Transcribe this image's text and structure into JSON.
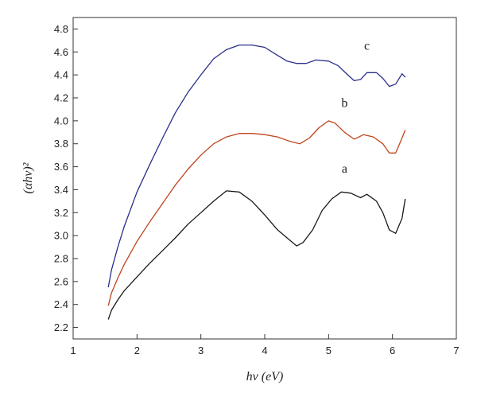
{
  "chart_data": {
    "type": "line",
    "xlabel": "hν (eV)",
    "ylabel": "(αhν)²",
    "xlim": [
      1,
      7
    ],
    "ylim": [
      2.1,
      4.9
    ],
    "x_ticks": [
      "1",
      "2",
      "3",
      "4",
      "5",
      "6",
      "7"
    ],
    "y_ticks": [
      "2.2",
      "2.4",
      "2.6",
      "2.8",
      "3.0",
      "3.2",
      "3.4",
      "3.6",
      "3.8",
      "4.0",
      "4.2",
      "4.4",
      "4.6",
      "4.8"
    ],
    "grid": false,
    "series": [
      {
        "name": "a",
        "color": "#1a1a1a",
        "label_pos": [
          5.25,
          3.55
        ],
        "points": [
          [
            1.55,
            2.27
          ],
          [
            1.6,
            2.35
          ],
          [
            1.7,
            2.44
          ],
          [
            1.8,
            2.52
          ],
          [
            2.0,
            2.64
          ],
          [
            2.2,
            2.76
          ],
          [
            2.4,
            2.87
          ],
          [
            2.6,
            2.98
          ],
          [
            2.8,
            3.1
          ],
          [
            3.0,
            3.2
          ],
          [
            3.2,
            3.3
          ],
          [
            3.4,
            3.39
          ],
          [
            3.6,
            3.38
          ],
          [
            3.8,
            3.3
          ],
          [
            4.0,
            3.18
          ],
          [
            4.2,
            3.05
          ],
          [
            4.35,
            2.98
          ],
          [
            4.5,
            2.91
          ],
          [
            4.6,
            2.94
          ],
          [
            4.75,
            3.05
          ],
          [
            4.9,
            3.22
          ],
          [
            5.05,
            3.32
          ],
          [
            5.2,
            3.38
          ],
          [
            5.35,
            3.37
          ],
          [
            5.5,
            3.33
          ],
          [
            5.6,
            3.36
          ],
          [
            5.75,
            3.3
          ],
          [
            5.85,
            3.2
          ],
          [
            5.95,
            3.05
          ],
          [
            6.05,
            3.02
          ],
          [
            6.15,
            3.15
          ],
          [
            6.2,
            3.32
          ]
        ]
      },
      {
        "name": "b",
        "color": "#c0441c",
        "label_pos": [
          5.25,
          4.12
        ],
        "points": [
          [
            1.55,
            2.39
          ],
          [
            1.6,
            2.5
          ],
          [
            1.7,
            2.63
          ],
          [
            1.8,
            2.75
          ],
          [
            2.0,
            2.95
          ],
          [
            2.2,
            3.12
          ],
          [
            2.4,
            3.28
          ],
          [
            2.6,
            3.44
          ],
          [
            2.8,
            3.58
          ],
          [
            3.0,
            3.7
          ],
          [
            3.2,
            3.8
          ],
          [
            3.4,
            3.86
          ],
          [
            3.6,
            3.89
          ],
          [
            3.8,
            3.89
          ],
          [
            4.0,
            3.88
          ],
          [
            4.2,
            3.86
          ],
          [
            4.4,
            3.82
          ],
          [
            4.55,
            3.8
          ],
          [
            4.7,
            3.85
          ],
          [
            4.85,
            3.94
          ],
          [
            5.0,
            4.0
          ],
          [
            5.1,
            3.98
          ],
          [
            5.25,
            3.9
          ],
          [
            5.4,
            3.84
          ],
          [
            5.55,
            3.88
          ],
          [
            5.7,
            3.86
          ],
          [
            5.85,
            3.8
          ],
          [
            5.95,
            3.72
          ],
          [
            6.05,
            3.72
          ],
          [
            6.15,
            3.85
          ],
          [
            6.2,
            3.92
          ]
        ]
      },
      {
        "name": "c",
        "color": "#2b2e8c",
        "label_pos": [
          5.6,
          4.62
        ],
        "points": [
          [
            1.55,
            2.55
          ],
          [
            1.6,
            2.7
          ],
          [
            1.7,
            2.9
          ],
          [
            1.8,
            3.08
          ],
          [
            2.0,
            3.38
          ],
          [
            2.2,
            3.62
          ],
          [
            2.4,
            3.85
          ],
          [
            2.6,
            4.07
          ],
          [
            2.8,
            4.25
          ],
          [
            3.0,
            4.4
          ],
          [
            3.2,
            4.54
          ],
          [
            3.4,
            4.62
          ],
          [
            3.6,
            4.66
          ],
          [
            3.8,
            4.66
          ],
          [
            4.0,
            4.64
          ],
          [
            4.2,
            4.57
          ],
          [
            4.35,
            4.52
          ],
          [
            4.5,
            4.5
          ],
          [
            4.65,
            4.5
          ],
          [
            4.8,
            4.53
          ],
          [
            5.0,
            4.52
          ],
          [
            5.15,
            4.48
          ],
          [
            5.3,
            4.4
          ],
          [
            5.4,
            4.35
          ],
          [
            5.5,
            4.36
          ],
          [
            5.6,
            4.42
          ],
          [
            5.75,
            4.42
          ],
          [
            5.85,
            4.37
          ],
          [
            5.95,
            4.3
          ],
          [
            6.05,
            4.32
          ],
          [
            6.15,
            4.41
          ],
          [
            6.2,
            4.38
          ]
        ]
      }
    ]
  }
}
